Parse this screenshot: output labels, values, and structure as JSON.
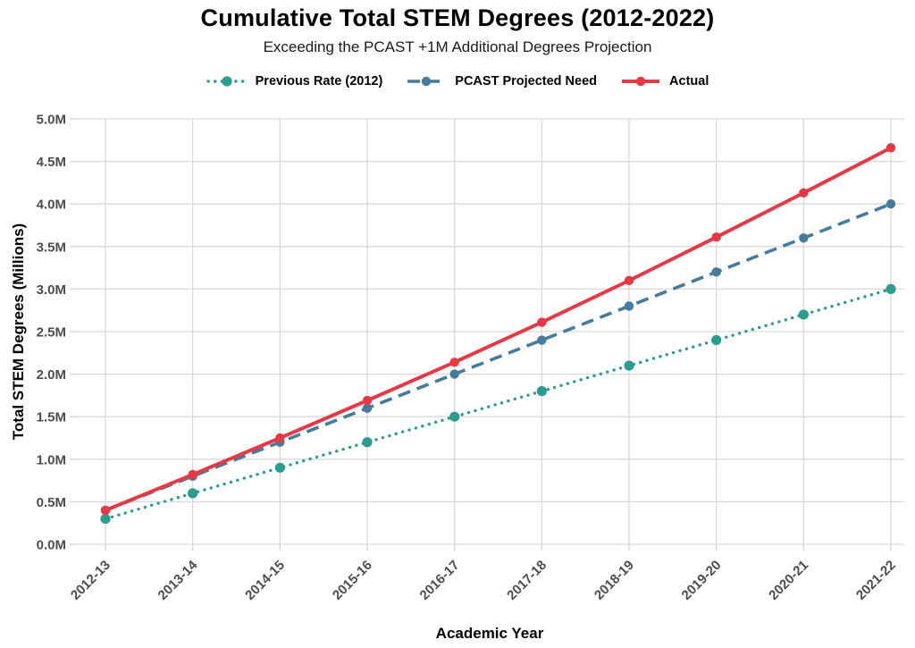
{
  "chart_data": {
    "type": "line",
    "title": "Cumulative Total STEM Degrees (2012-2022)",
    "subtitle": "Exceeding the PCAST +1M Additional Degrees Projection",
    "xlabel": "Academic Year",
    "ylabel": "Total STEM Degrees (Millions)",
    "categories": [
      "2012-13",
      "2013-14",
      "2014-15",
      "2015-16",
      "2016-17",
      "2017-18",
      "2018-19",
      "2019-20",
      "2020-21",
      "2021-22"
    ],
    "series": [
      {
        "name": "Previous Rate (2012)",
        "style": "dotted",
        "marker": "circle",
        "color": "#2a9d8f",
        "values": [
          0.3,
          0.6,
          0.9,
          1.2,
          1.5,
          1.8,
          2.1,
          2.4,
          2.7,
          3.0
        ]
      },
      {
        "name": "PCAST Projected Need",
        "style": "dashed",
        "marker": "circle",
        "color": "#457b9d",
        "values": [
          0.4,
          0.8,
          1.2,
          1.6,
          2.0,
          2.4,
          2.8,
          3.2,
          3.6,
          4.0
        ]
      },
      {
        "name": "Actual",
        "style": "solid",
        "marker": "circle",
        "color": "#e63946",
        "values": [
          0.4,
          0.82,
          1.25,
          1.69,
          2.14,
          2.61,
          3.1,
          3.61,
          4.13,
          4.66
        ]
      }
    ],
    "ylim": [
      0,
      5
    ],
    "ytick_step": 0.5,
    "ytick_suffix": "M",
    "grid": true,
    "legend_position": "top",
    "colors": {
      "grid": "#d9d9d9",
      "tick_label": "#4d4d4d",
      "title": "#000000",
      "background": "#ffffff"
    }
  }
}
